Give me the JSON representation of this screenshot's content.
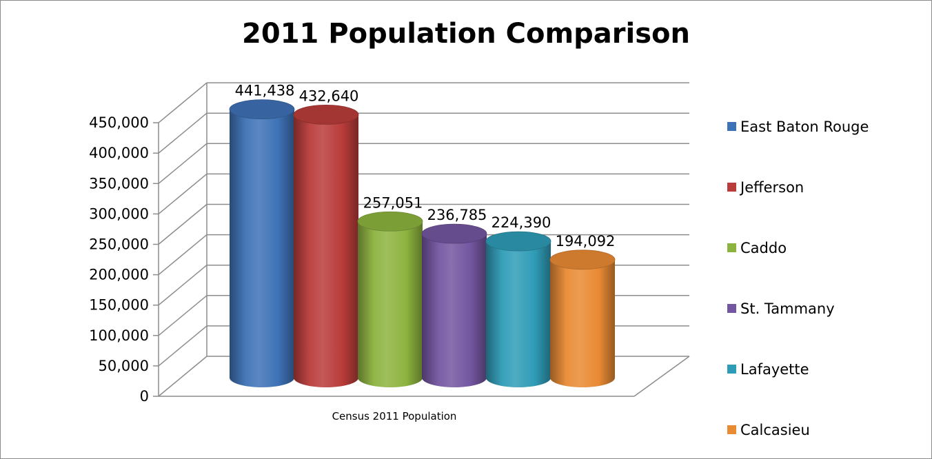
{
  "chart_data": {
    "type": "bar",
    "title": "2011 Population Comparison",
    "categories": [
      "Census 2011 Population"
    ],
    "series": [
      {
        "name": "East Baton Rouge",
        "values": [
          441438
        ],
        "label": "441,438",
        "color": "#3e72b6"
      },
      {
        "name": "Jefferson",
        "values": [
          432640
        ],
        "label": "432,640",
        "color": "#b93c3a"
      },
      {
        "name": "Caddo",
        "values": [
          257051
        ],
        "label": "257,051",
        "color": "#8db33f"
      },
      {
        "name": "St. Tammany",
        "values": [
          236785
        ],
        "label": "236,785",
        "color": "#7356a0"
      },
      {
        "name": "Lafayette",
        "values": [
          224390
        ],
        "label": "224,390",
        "color": "#2f9cb7"
      },
      {
        "name": "Calcasieu",
        "values": [
          194092
        ],
        "label": "194,092",
        "color": "#e98a34"
      }
    ],
    "yticks": [
      "0",
      "50,000",
      "100,000",
      "150,000",
      "200,000",
      "250,000",
      "300,000",
      "350,000",
      "400,000",
      "450,000"
    ],
    "ylim": [
      0,
      450000
    ],
    "xlabel": "",
    "ylabel": "",
    "legend_position": "right",
    "grid": true,
    "style": "3d-cylinder"
  }
}
